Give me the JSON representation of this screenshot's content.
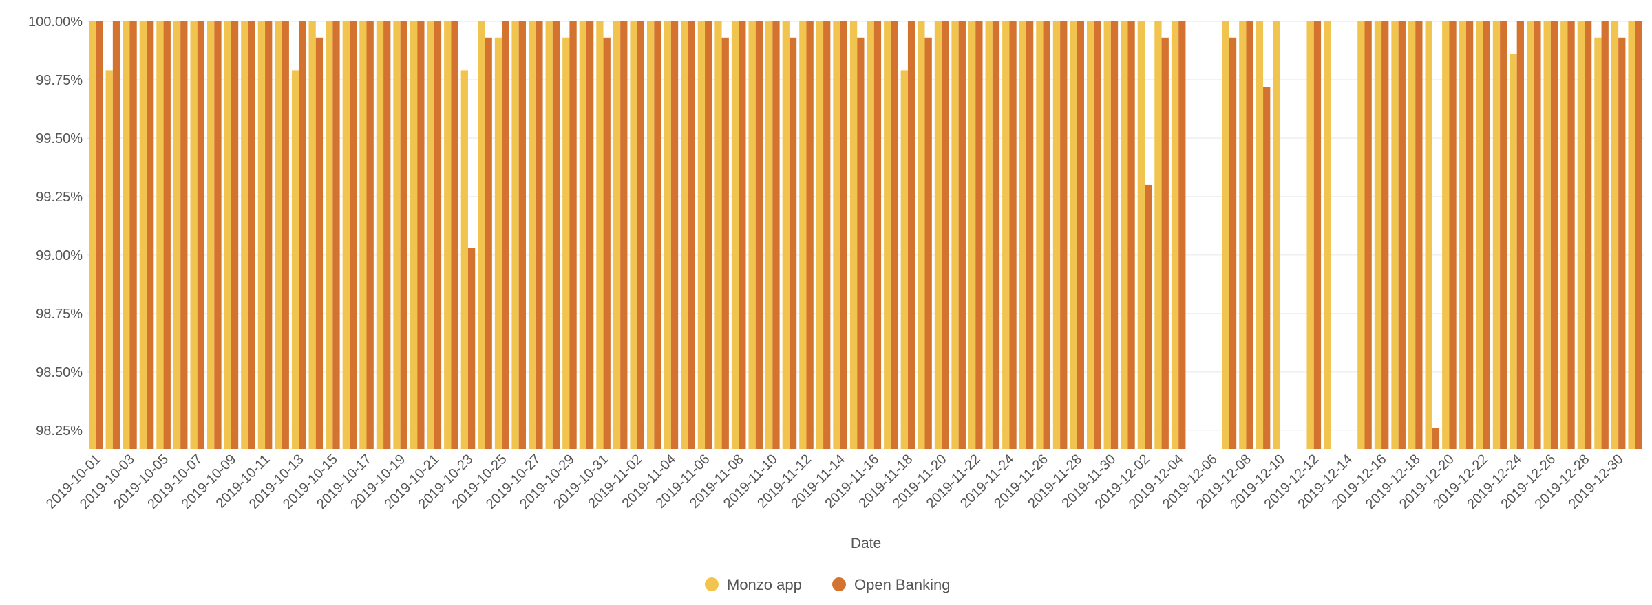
{
  "chart_data": {
    "type": "bar",
    "xlabel": "Date",
    "ylabel": "",
    "ylim": [
      98.17,
      100.0
    ],
    "yticks": [
      "98.25%",
      "98.50%",
      "98.75%",
      "99.00%",
      "99.25%",
      "99.50%",
      "99.75%",
      "100.00%"
    ],
    "ytick_values": [
      98.25,
      98.5,
      98.75,
      99.0,
      99.25,
      99.5,
      99.75,
      100.0
    ],
    "grid": true,
    "legend_position": "bottom",
    "categories": [
      "2019-10-01",
      "2019-10-02",
      "2019-10-03",
      "2019-10-04",
      "2019-10-05",
      "2019-10-06",
      "2019-10-07",
      "2019-10-08",
      "2019-10-09",
      "2019-10-10",
      "2019-10-11",
      "2019-10-12",
      "2019-10-13",
      "2019-10-14",
      "2019-10-15",
      "2019-10-16",
      "2019-10-17",
      "2019-10-18",
      "2019-10-19",
      "2019-10-20",
      "2019-10-21",
      "2019-10-22",
      "2019-10-23",
      "2019-10-24",
      "2019-10-25",
      "2019-10-26",
      "2019-10-27",
      "2019-10-28",
      "2019-10-29",
      "2019-10-30",
      "2019-10-31",
      "2019-11-01",
      "2019-11-02",
      "2019-11-03",
      "2019-11-04",
      "2019-11-05",
      "2019-11-06",
      "2019-11-07",
      "2019-11-08",
      "2019-11-09",
      "2019-11-10",
      "2019-11-11",
      "2019-11-12",
      "2019-11-13",
      "2019-11-14",
      "2019-11-15",
      "2019-11-16",
      "2019-11-17",
      "2019-11-18",
      "2019-11-19",
      "2019-11-20",
      "2019-11-21",
      "2019-11-22",
      "2019-11-23",
      "2019-11-24",
      "2019-11-25",
      "2019-11-26",
      "2019-11-27",
      "2019-11-28",
      "2019-11-29",
      "2019-11-30",
      "2019-12-01",
      "2019-12-02",
      "2019-12-03",
      "2019-12-04",
      "2019-12-05",
      "2019-12-06",
      "2019-12-07",
      "2019-12-08",
      "2019-12-09",
      "2019-12-10",
      "2019-12-11",
      "2019-12-12",
      "2019-12-13",
      "2019-12-14",
      "2019-12-15",
      "2019-12-16",
      "2019-12-17",
      "2019-12-18",
      "2019-12-19",
      "2019-12-20",
      "2019-12-21",
      "2019-12-22",
      "2019-12-23",
      "2019-12-24",
      "2019-12-25",
      "2019-12-26",
      "2019-12-27",
      "2019-12-28",
      "2019-12-29",
      "2019-12-30",
      "2019-12-31"
    ],
    "tick_labels": [
      "2019-10-01",
      "2019-10-03",
      "2019-10-05",
      "2019-10-07",
      "2019-10-09",
      "2019-10-11",
      "2019-10-13",
      "2019-10-15",
      "2019-10-17",
      "2019-10-19",
      "2019-10-21",
      "2019-10-23",
      "2019-10-25",
      "2019-10-27",
      "2019-10-29",
      "2019-10-31",
      "2019-11-02",
      "2019-11-04",
      "2019-11-06",
      "2019-11-08",
      "2019-11-10",
      "2019-11-12",
      "2019-11-14",
      "2019-11-16",
      "2019-11-18",
      "2019-11-20",
      "2019-11-22",
      "2019-11-24",
      "2019-11-26",
      "2019-11-28",
      "2019-11-30",
      "2019-12-02",
      "2019-12-04",
      "2019-12-06",
      "2019-12-08",
      "2019-12-10",
      "2019-12-12",
      "2019-12-14",
      "2019-12-16",
      "2019-12-18",
      "2019-12-20",
      "2019-12-22",
      "2019-12-24",
      "2019-12-26",
      "2019-12-28",
      "2019-12-30"
    ],
    "series": [
      {
        "name": "Monzo app",
        "color": "#f0c44f",
        "values": [
          100,
          99.79,
          100,
          100,
          100,
          100,
          100,
          100,
          100,
          100,
          100,
          100,
          99.79,
          100,
          100,
          100,
          100,
          100,
          100,
          100,
          100,
          100,
          99.79,
          100,
          99.93,
          100,
          100,
          100,
          99.93,
          100,
          100,
          100,
          100,
          100,
          100,
          100,
          100,
          100,
          100,
          100,
          100,
          100,
          100,
          100,
          100,
          100,
          100,
          100,
          99.79,
          100,
          100,
          100,
          100,
          100,
          100,
          100,
          100,
          100,
          100,
          100,
          100,
          100,
          100,
          100,
          100,
          null,
          null,
          100,
          100,
          100,
          100,
          null,
          100,
          100,
          null,
          100,
          100,
          100,
          100,
          100,
          100,
          100,
          100,
          100,
          99.86,
          100,
          100,
          100,
          100,
          99.93,
          100,
          100
        ]
      },
      {
        "name": "Open Banking",
        "color": "#d4732f",
        "values": [
          100,
          100,
          100,
          100,
          100,
          100,
          100,
          100,
          100,
          100,
          100,
          100,
          100,
          99.93,
          100,
          100,
          100,
          100,
          100,
          100,
          100,
          100,
          99.03,
          99.93,
          100,
          100,
          100,
          100,
          100,
          100,
          99.93,
          100,
          100,
          100,
          100,
          100,
          100,
          99.93,
          100,
          100,
          100,
          99.93,
          100,
          100,
          100,
          99.93,
          100,
          100,
          100,
          99.93,
          100,
          100,
          100,
          100,
          100,
          100,
          100,
          100,
          100,
          100,
          100,
          100,
          99.3,
          99.93,
          100,
          null,
          null,
          99.93,
          100,
          99.72,
          null,
          null,
          100,
          null,
          null,
          100,
          100,
          100,
          100,
          98.26,
          100,
          100,
          100,
          100,
          100,
          100,
          100,
          100,
          100,
          100,
          99.93,
          100
        ]
      }
    ]
  }
}
